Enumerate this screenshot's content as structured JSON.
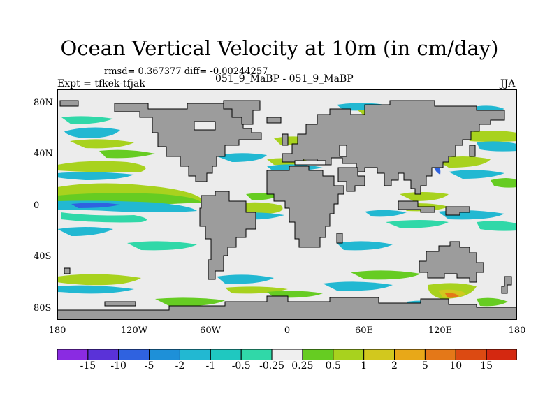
{
  "title": "Ocean Vertical Velocity at 10m (in cm/day)",
  "stats": "rmsd= 0.367377 diff= -0.00244257",
  "expt": "Expt = tfkek-tfjak",
  "runs": "051_9_MaBP - 051_9_MaBP",
  "season": "JJA",
  "axes": {
    "lon_ticks": [
      "180",
      "120W",
      "60W",
      "0",
      "60E",
      "120E",
      "180"
    ],
    "lat_ticks": [
      "80N",
      "40N",
      "0",
      "40S",
      "80S"
    ]
  },
  "colorbar": {
    "labels": [
      "-15",
      "-10",
      "-5",
      "-2",
      "-1",
      "-0.5",
      "-0.25",
      "0.25",
      "0.5",
      "1",
      "2",
      "5",
      "10",
      "15"
    ],
    "colors": [
      "#8a2be2",
      "#5a32d8",
      "#2f62e0",
      "#1e90d8",
      "#22b8d2",
      "#1fc8c0",
      "#30d8a8",
      "#efefef",
      "#66cc22",
      "#a8d21e",
      "#d2c81e",
      "#e8a818",
      "#e47818",
      "#dc4a12",
      "#d42810"
    ]
  },
  "colors": {
    "land": "#9c9c9c",
    "ocean_neutral": "#ececec",
    "coast": "#000000"
  }
}
